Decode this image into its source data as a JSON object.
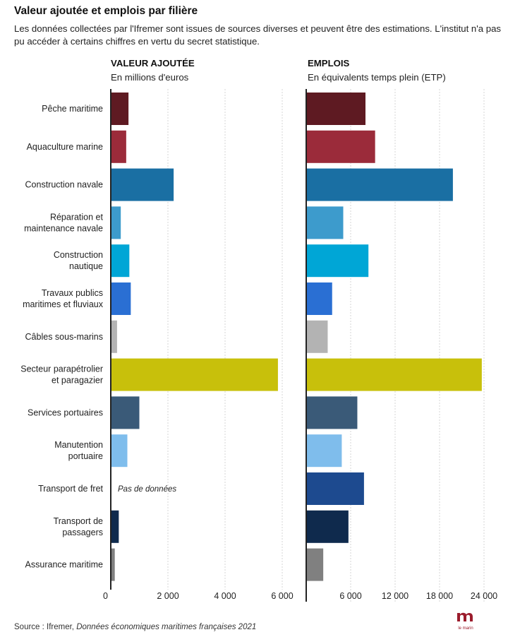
{
  "header": {
    "title": "Valeur ajoutée et emplois par filière",
    "subtitle": "Les données collectées par l'Ifremer sont issues de sources diverses et peuvent être des estimations. L'institut n'a pas pu accéder à certains chiffres en vertu du secret statistique."
  },
  "panels": {
    "left": {
      "title": "VALEUR AJOUTÉE",
      "unit": "En millions d'euros"
    },
    "right": {
      "title": "EMPLOIS",
      "unit": "En équivalents temps plein (ETP)"
    }
  },
  "footer": {
    "source_prefix": "Source : Ifremer, ",
    "source_title": "Données économiques maritimes françaises 2021"
  },
  "logo": {
    "text": "le marin",
    "color": "#9b1c2c"
  },
  "chart_data": [
    {
      "type": "bar",
      "orientation": "horizontal",
      "title": "VALEUR AJOUTÉE",
      "subtitle": "En millions d'euros",
      "categories": [
        "Pêche maritime",
        "Aquaculture marine",
        "Construction navale",
        "Réparation et maintenance navale",
        "Construction nautique",
        "Travaux publics maritimes et fluviaux",
        "Câbles sous-marins",
        "Secteur parapétrolier et paragazier",
        "Services portuaires",
        "Manutention portuaire",
        "Transport de fret",
        "Transport de passagers",
        "Assurance maritime"
      ],
      "values": [
        620,
        540,
        2200,
        350,
        650,
        700,
        220,
        5850,
        1000,
        580,
        null,
        280,
        140
      ],
      "annotations": [
        {
          "category": "Transport de fret",
          "text": "Pas de données"
        }
      ],
      "xlim": [
        0,
        6500
      ],
      "xticks": [
        0,
        2000,
        4000,
        6000
      ],
      "xtick_labels": [
        "0",
        "2 000",
        "4 000",
        "6 000"
      ],
      "grid": true
    },
    {
      "type": "bar",
      "orientation": "horizontal",
      "title": "EMPLOIS",
      "subtitle": "En équivalents temps plein (ETP)",
      "categories": [
        "Pêche maritime",
        "Aquaculture marine",
        "Construction navale",
        "Réparation et maintenance navale",
        "Construction nautique",
        "Travaux publics maritimes et fluviaux",
        "Câbles sous-marins",
        "Secteur parapétrolier et paragazier",
        "Services portuaires",
        "Manutention portuaire",
        "Transport de fret",
        "Transport de passagers",
        "Assurance maritime"
      ],
      "values": [
        8000,
        9300,
        19800,
        5000,
        8400,
        3500,
        2900,
        23700,
        6900,
        4800,
        7800,
        5700,
        2300
      ],
      "xlim": [
        0,
        25000
      ],
      "xticks": [
        6000,
        12000,
        18000,
        24000
      ],
      "xtick_labels": [
        "6 000",
        "12 000",
        "18 000",
        "24 000"
      ],
      "grid": true
    }
  ],
  "colors": [
    "#5e1a22",
    "#9b2b3a",
    "#1a6fa3",
    "#3d9bcc",
    "#00a6d6",
    "#2a6fd3",
    "#b3b3b3",
    "#c8c00b",
    "#3a5a78",
    "#7fbdec",
    "#1d4a8f",
    "#0f2a4d",
    "#808080"
  ],
  "axis_color": "#222222",
  "grid_color": "#d5d5d5"
}
